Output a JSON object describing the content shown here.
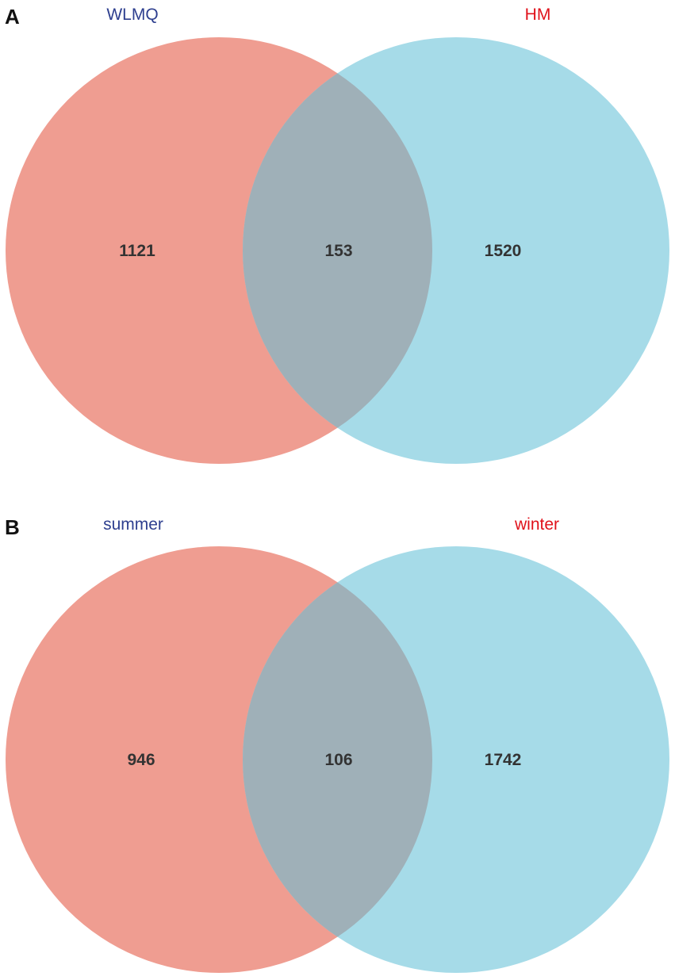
{
  "panels": [
    {
      "letter": "A",
      "left_label": "WLMQ",
      "right_label": "HM",
      "left_only": "1121",
      "overlap": "153",
      "right_only": "1520"
    },
    {
      "letter": "B",
      "left_label": "summer",
      "right_label": "winter",
      "left_only": "946",
      "overlap": "106",
      "right_only": "1742"
    }
  ],
  "colors": {
    "left_set": "#ef9d91",
    "right_set": "#8fd6e6",
    "overlap": "#9fb0b8",
    "left_label": "#2e3f8f",
    "right_label": "#e0121b",
    "letter": "#111111"
  }
}
